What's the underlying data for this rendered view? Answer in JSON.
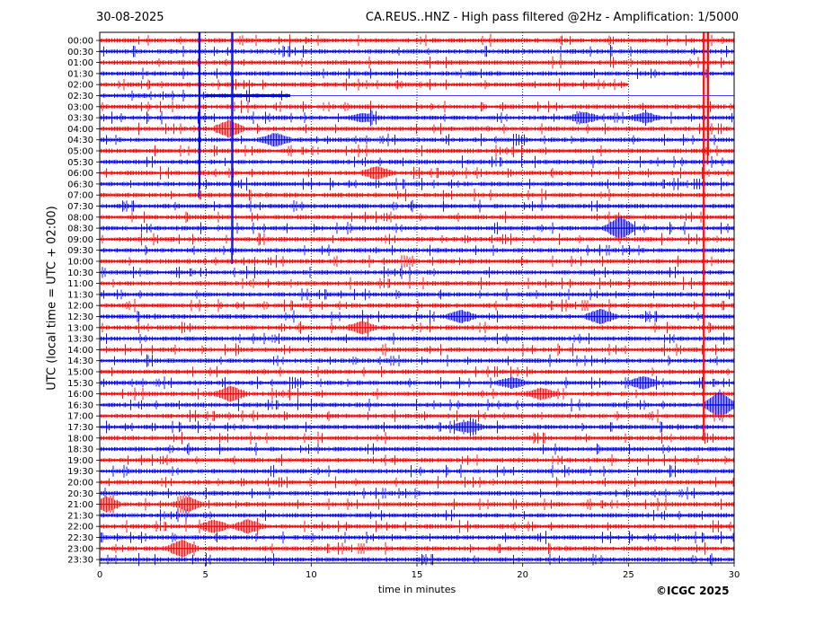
{
  "header": {
    "date": "30-08-2025",
    "title": "CA.REUS..HNZ - High pass filtered @2Hz - Amplification: 1/5000"
  },
  "footer": {
    "copyright": "©ICGC 2025"
  },
  "colors": {
    "trace_a": "#ff0000",
    "trace_b": "#0000ff"
  },
  "chart_data": {
    "type": "line",
    "ylabel": "UTC (local time = UTC + 02:00)",
    "xlabel": "time in minutes",
    "xlim": [
      0,
      30
    ],
    "x_ticks": [
      "0",
      "5",
      "10",
      "15",
      "20",
      "25",
      "30"
    ],
    "grid": "vertical dotted lines at each 5 minutes",
    "rows": [
      "00:00",
      "00:30",
      "01:00",
      "01:30",
      "02:00",
      "02:30",
      "03:00",
      "03:30",
      "04:00",
      "04:30",
      "05:00",
      "05:30",
      "06:00",
      "06:30",
      "07:00",
      "07:30",
      "08:00",
      "08:30",
      "09:00",
      "09:30",
      "10:00",
      "10:30",
      "11:00",
      "11:30",
      "12:00",
      "12:30",
      "13:00",
      "13:30",
      "14:00",
      "14:30",
      "15:00",
      "15:30",
      "16:00",
      "16:30",
      "17:00",
      "17:30",
      "18:00",
      "18:30",
      "19:00",
      "19:30",
      "20:00",
      "20:30",
      "21:00",
      "21:30",
      "22:00",
      "22:30",
      "23:00",
      "23:30"
    ],
    "row_colors": [
      "red",
      "blue",
      "red",
      "blue",
      "red",
      "blue",
      "red",
      "blue",
      "red",
      "blue",
      "red",
      "blue",
      "red",
      "blue",
      "red",
      "blue",
      "red",
      "blue",
      "red",
      "blue",
      "red",
      "blue",
      "red",
      "blue",
      "red",
      "blue",
      "red",
      "blue",
      "red",
      "blue",
      "red",
      "blue",
      "red",
      "blue",
      "red",
      "blue",
      "red",
      "blue",
      "red",
      "blue",
      "red",
      "blue",
      "red",
      "blue",
      "red",
      "blue",
      "red",
      "blue"
    ],
    "trace_ends": [
      {
        "row": "02:00",
        "end_minute": 25
      },
      {
        "row": "02:30",
        "start_minute": 5,
        "end_minute": 9
      },
      {
        "row": "23:00",
        "end_minute": 30
      },
      {
        "row": "23:30",
        "end_minute": 30
      }
    ],
    "events": [
      {
        "row": "03:30",
        "minute": 12.5,
        "amplitude": 0.35
      },
      {
        "row": "03:30",
        "minute": 22.9,
        "amplitude": 0.45
      },
      {
        "row": "03:30",
        "minute": 25.8,
        "amplitude": 0.45
      },
      {
        "row": "04:00",
        "minute": 6.1,
        "amplitude": 0.8
      },
      {
        "row": "04:30",
        "minute": 8.3,
        "amplitude": 0.6
      },
      {
        "row": "06:00",
        "minute": 13.1,
        "amplitude": 0.6
      },
      {
        "row": "08:30",
        "minute": 24.6,
        "amplitude": 1.1
      },
      {
        "row": "12:30",
        "minute": 17.1,
        "amplitude": 0.55
      },
      {
        "row": "12:30",
        "minute": 23.7,
        "amplitude": 0.7
      },
      {
        "row": "13:00",
        "minute": 12.4,
        "amplitude": 0.55
      },
      {
        "row": "15:30",
        "minute": 19.5,
        "amplitude": 0.45
      },
      {
        "row": "15:30",
        "minute": 25.7,
        "amplitude": 0.55
      },
      {
        "row": "16:00",
        "minute": 6.2,
        "amplitude": 0.7
      },
      {
        "row": "16:00",
        "minute": 20.9,
        "amplitude": 0.5
      },
      {
        "row": "16:30",
        "minute": 29.3,
        "amplitude": 1.3
      },
      {
        "row": "17:30",
        "minute": 17.4,
        "amplitude": 0.5
      },
      {
        "row": "21:00",
        "minute": 0.3,
        "amplitude": 0.7
      },
      {
        "row": "21:00",
        "minute": 4.2,
        "amplitude": 0.6
      },
      {
        "row": "22:00",
        "minute": 5.4,
        "amplitude": 0.55
      },
      {
        "row": "22:00",
        "minute": 7.0,
        "amplitude": 0.6
      },
      {
        "row": "23:00",
        "minute": 3.9,
        "amplitude": 0.8
      }
    ],
    "spikes": [
      {
        "color": "blue",
        "minute": 4.7,
        "from_row": "00:00",
        "to_row": "07:00"
      },
      {
        "color": "blue",
        "minute": 6.25,
        "from_row": "00:00",
        "to_row": "10:00"
      },
      {
        "color": "red",
        "minute": 28.55,
        "from_row": "00:00",
        "to_row": "18:00"
      },
      {
        "color": "red",
        "minute": 28.75,
        "from_row": "00:00",
        "to_row": "05:30"
      }
    ]
  }
}
